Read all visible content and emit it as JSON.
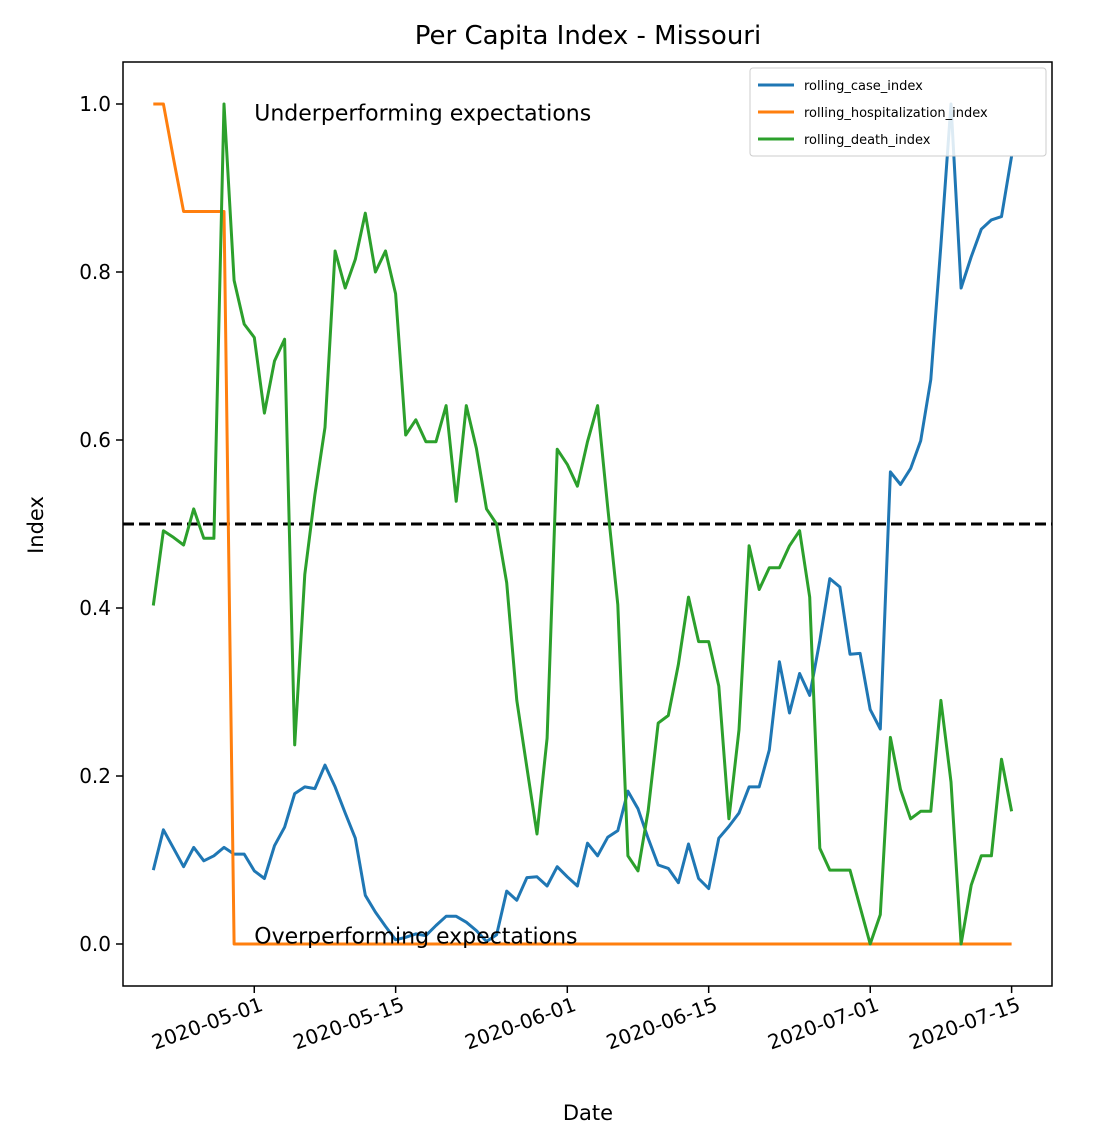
{
  "chart_data": {
    "type": "line",
    "title": "Per Capita Index - Missouri",
    "xlabel": "Date",
    "ylabel": "Index",
    "x_start": "2020-04-21",
    "xlim": [
      "2020-04-18",
      "2020-07-19"
    ],
    "ylim": [
      -0.05,
      1.05
    ],
    "x_ticks": [
      "2020-05-01",
      "2020-05-15",
      "2020-06-01",
      "2020-06-15",
      "2020-07-01",
      "2020-07-15"
    ],
    "y_ticks": [
      0.0,
      0.2,
      0.4,
      0.6,
      0.8,
      1.0
    ],
    "y_tick_labels": [
      "0.0",
      "0.2",
      "0.4",
      "0.6",
      "0.8",
      "1.0"
    ],
    "grid": false,
    "legend_position": "top-right",
    "reference_line": {
      "y": 0.5,
      "style": "dashed",
      "color": "#000000"
    },
    "annotations": [
      {
        "text": "Underperforming expectations",
        "x": "2020-05-01",
        "y": 0.99
      },
      {
        "text": "Overperforming expectations",
        "x": "2020-05-01",
        "y": 0.01
      }
    ],
    "series": [
      {
        "name": "rolling_case_index",
        "color": "#1f77b4",
        "values": [
          0.088,
          0.136,
          0.114,
          0.092,
          0.115,
          0.099,
          0.105,
          0.115,
          0.107,
          0.107,
          0.087,
          0.078,
          0.117,
          0.139,
          0.179,
          0.187,
          0.185,
          0.213,
          0.187,
          0.156,
          0.126,
          0.058,
          0.038,
          0.021,
          0.005,
          0.008,
          0.012,
          0.01,
          0.022,
          0.033,
          0.033,
          0.026,
          0.016,
          0.003,
          0.011,
          0.063,
          0.052,
          0.079,
          0.08,
          0.069,
          0.092,
          0.08,
          0.069,
          0.12,
          0.105,
          0.127,
          0.135,
          0.182,
          0.161,
          0.126,
          0.094,
          0.09,
          0.073,
          0.119,
          0.078,
          0.066,
          0.126,
          0.14,
          0.156,
          0.187,
          0.187,
          0.231,
          0.336,
          0.275,
          0.322,
          0.296,
          0.361,
          0.435,
          0.425,
          0.345,
          0.346,
          0.279,
          0.256,
          0.562,
          0.547,
          0.566,
          0.599,
          0.672,
          0.832,
          1.0,
          0.781,
          0.818,
          0.851,
          0.862,
          0.866,
          0.938
        ]
      },
      {
        "name": "rolling_hospitalization_index",
        "color": "#ff7f0e",
        "values": [
          1.0,
          1.0,
          0.935,
          0.872,
          0.872,
          0.872,
          0.872,
          0.872,
          0.0,
          0.0,
          0.0,
          0.0,
          0.0,
          0.0,
          0.0,
          0.0,
          0.0,
          0.0,
          0.0,
          0.0,
          0.0,
          0.0,
          0.0,
          0.0,
          0.0,
          0.0,
          0.0,
          0.0,
          0.0,
          0.0,
          0.0,
          0.0,
          0.0,
          0.0,
          0.0,
          0.0,
          0.0,
          0.0,
          0.0,
          0.0,
          0.0,
          0.0,
          0.0,
          0.0,
          0.0,
          0.0,
          0.0,
          0.0,
          0.0,
          0.0,
          0.0,
          0.0,
          0.0,
          0.0,
          0.0,
          0.0,
          0.0,
          0.0,
          0.0,
          0.0,
          0.0,
          0.0,
          0.0,
          0.0,
          0.0,
          0.0,
          0.0,
          0.0,
          0.0,
          0.0,
          0.0,
          0.0,
          0.0,
          0.0,
          0.0,
          0.0,
          0.0,
          0.0,
          0.0,
          0.0,
          0.0,
          0.0,
          0.0,
          0.0,
          0.0,
          0.0
        ]
      },
      {
        "name": "rolling_death_index",
        "color": "#2ca02c",
        "values": [
          0.403,
          0.492,
          0.484,
          0.475,
          0.518,
          0.483,
          0.483,
          1.0,
          0.79,
          0.738,
          0.722,
          0.632,
          0.694,
          0.72,
          0.237,
          0.44,
          0.535,
          0.615,
          0.825,
          0.781,
          0.815,
          0.87,
          0.8,
          0.825,
          0.774,
          0.606,
          0.624,
          0.598,
          0.598,
          0.641,
          0.527,
          0.641,
          0.59,
          0.518,
          0.5,
          0.43,
          0.29,
          0.21,
          0.131,
          0.245,
          0.589,
          0.571,
          0.545,
          0.598,
          0.641,
          0.52,
          0.404,
          0.105,
          0.087,
          0.158,
          0.263,
          0.272,
          0.333,
          0.413,
          0.36,
          0.36,
          0.307,
          0.149,
          0.255,
          0.474,
          0.422,
          0.448,
          0.448,
          0.474,
          0.492,
          0.413,
          0.114,
          0.088,
          0.088,
          0.088,
          0.044,
          0.0,
          0.035,
          0.246,
          0.184,
          0.149,
          0.158,
          0.158,
          0.29,
          0.193,
          0.0,
          0.07,
          0.105,
          0.105,
          0.22,
          0.158
        ]
      }
    ]
  }
}
